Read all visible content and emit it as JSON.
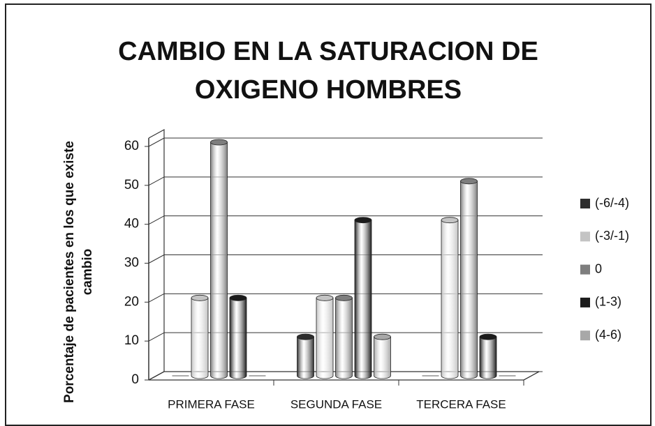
{
  "chart_data": {
    "type": "bar3d",
    "title": [
      "CAMBIO EN LA SATURACION DE",
      "OXIGENO HOMBRES"
    ],
    "y_label": [
      "Porcentaje de pacientes en los que existe",
      "cambio"
    ],
    "categories": [
      "PRIMERA FASE",
      "SEGUNDA FASE",
      "TERCERA FASE"
    ],
    "series": [
      {
        "name": "(-6/-4)",
        "color": "#2e2e2e",
        "values": [
          0,
          10,
          0
        ]
      },
      {
        "name": "(-3/-1)",
        "color": "#c4c4c4",
        "values": [
          20,
          20,
          40
        ]
      },
      {
        "name": "0",
        "color": "#7e7e7e",
        "values": [
          60,
          20,
          50
        ]
      },
      {
        "name": "(1-3)",
        "color": "#1c1c1c",
        "values": [
          20,
          40,
          10
        ]
      },
      {
        "name": "(4-6)",
        "color": "#a8a8a8",
        "values": [
          0,
          10,
          0
        ]
      }
    ],
    "ylim": [
      0,
      60
    ],
    "yticks": [
      0,
      10,
      20,
      30,
      40,
      50,
      60
    ],
    "grid": true,
    "legend": "right"
  }
}
